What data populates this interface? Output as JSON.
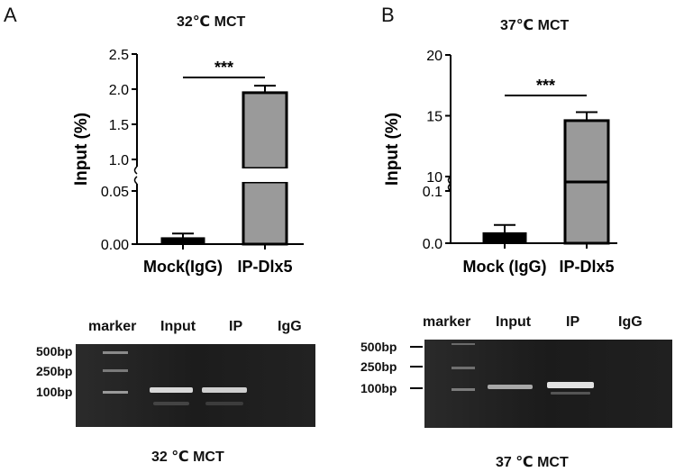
{
  "panels": [
    {
      "letter": "A",
      "title": "32℃  MCT",
      "gel": {
        "lanes": [
          "marker",
          "Input",
          "IP",
          "IgG"
        ],
        "markers": [
          "500bp",
          "250bp",
          "100bp"
        ],
        "caption": "32 ℃  MCT"
      }
    },
    {
      "letter": "B",
      "title": "37℃  MCT",
      "gel": {
        "lanes": [
          "marker",
          "Input",
          "IP",
          "IgG"
        ],
        "markers": [
          "500bp",
          "250bp",
          "100bp"
        ],
        "caption": "37 ℃  MCT"
      }
    }
  ],
  "chart_data": [
    {
      "type": "bar",
      "categories": [
        "Mock(IgG)",
        "IP-Dlx5"
      ],
      "values": [
        0.006,
        1.95
      ],
      "errors": [
        0.004,
        0.1
      ],
      "colors": [
        "#000000",
        "#9a9a9a"
      ],
      "ylabel": "Input (%)",
      "y_break": true,
      "lower_ylim": [
        0,
        0.05
      ],
      "lower_ticks": [
        "0.00",
        "0.05"
      ],
      "upper_ylim": [
        1.0,
        2.5
      ],
      "upper_ticks": [
        "1.0",
        "1.5",
        "2.0",
        "2.5"
      ],
      "significance": "***"
    },
    {
      "type": "bar",
      "categories": [
        "Mock (IgG)",
        "IP-Dlx5"
      ],
      "values": [
        0.02,
        14.6
      ],
      "errors": [
        0.015,
        0.7
      ],
      "colors": [
        "#000000",
        "#9a9a9a"
      ],
      "ylabel": "Input (%)",
      "y_break": true,
      "lower_ylim": [
        0,
        0.1
      ],
      "lower_ticks": [
        "0.0",
        "0.1"
      ],
      "upper_ylim": [
        10,
        20
      ],
      "upper_ticks": [
        "10",
        "15",
        "20"
      ],
      "significance": "***"
    }
  ]
}
